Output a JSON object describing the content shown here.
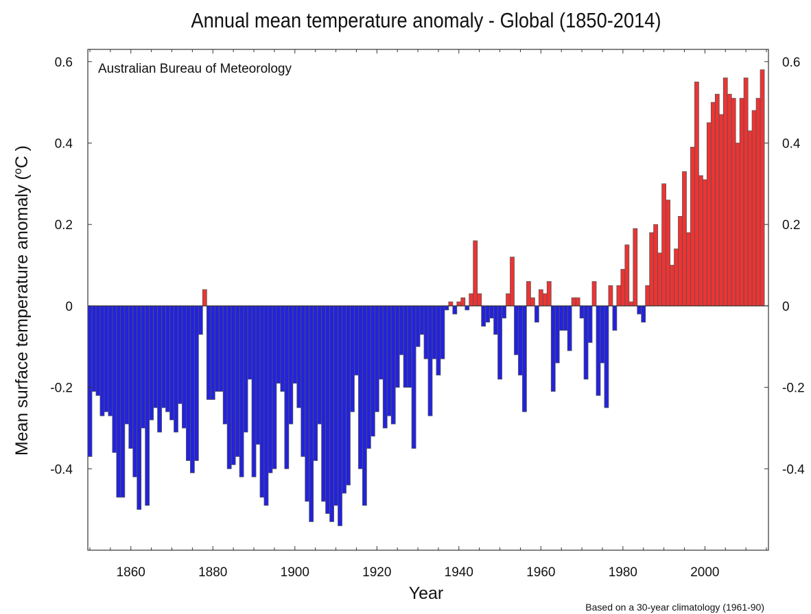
{
  "chart_data": {
    "type": "bar",
    "title": "Annual mean temperature anomaly - Global (1850-2014)",
    "source_label": "Australian Bureau of Meteorology",
    "xlabel": "Year",
    "ylabel_text": "Mean surface temperature anomaly (",
    "ylabel_degree": "o",
    "ylabel_unit": "C )",
    "footnote": "Based on a 30-year climatology (1961-90)",
    "xlim": [
      1849.5,
      2015.5
    ],
    "ylim": [
      -0.6,
      0.63
    ],
    "x_ticks": [
      1860,
      1880,
      1900,
      1920,
      1940,
      1960,
      1980,
      2000
    ],
    "x_tick_labels": [
      "1860",
      "1880",
      "1900",
      "1920",
      "1940",
      "1960",
      "1980",
      "2000"
    ],
    "y_ticks": [
      0.6,
      0.4,
      0.2,
      0,
      -0.2,
      -0.4
    ],
    "y_tick_labels": [
      "0.6",
      "0.4",
      "0.2",
      "0",
      "-0.2",
      "-0.4"
    ],
    "grid": false,
    "colors": {
      "positive": "#ee3333",
      "negative": "#2222dd",
      "bar_edge": "#555555",
      "axis": "#333333"
    },
    "start_year": 1850,
    "years": [
      1850,
      1851,
      1852,
      1853,
      1854,
      1855,
      1856,
      1857,
      1858,
      1859,
      1860,
      1861,
      1862,
      1863,
      1864,
      1865,
      1866,
      1867,
      1868,
      1869,
      1870,
      1871,
      1872,
      1873,
      1874,
      1875,
      1876,
      1877,
      1878,
      1879,
      1880,
      1881,
      1882,
      1883,
      1884,
      1885,
      1886,
      1887,
      1888,
      1889,
      1890,
      1891,
      1892,
      1893,
      1894,
      1895,
      1896,
      1897,
      1898,
      1899,
      1900,
      1901,
      1902,
      1903,
      1904,
      1905,
      1906,
      1907,
      1908,
      1909,
      1910,
      1911,
      1912,
      1913,
      1914,
      1915,
      1916,
      1917,
      1918,
      1919,
      1920,
      1921,
      1922,
      1923,
      1924,
      1925,
      1926,
      1927,
      1928,
      1929,
      1930,
      1931,
      1932,
      1933,
      1934,
      1935,
      1936,
      1937,
      1938,
      1939,
      1940,
      1941,
      1942,
      1943,
      1944,
      1945,
      1946,
      1947,
      1948,
      1949,
      1950,
      1951,
      1952,
      1953,
      1954,
      1955,
      1956,
      1957,
      1958,
      1959,
      1960,
      1961,
      1962,
      1963,
      1964,
      1965,
      1966,
      1967,
      1968,
      1969,
      1970,
      1971,
      1972,
      1973,
      1974,
      1975,
      1976,
      1977,
      1978,
      1979,
      1980,
      1981,
      1982,
      1983,
      1984,
      1985,
      1986,
      1987,
      1988,
      1989,
      1990,
      1991,
      1992,
      1993,
      1994,
      1995,
      1996,
      1997,
      1998,
      1999,
      2000,
      2001,
      2002,
      2003,
      2004,
      2005,
      2006,
      2007,
      2008,
      2009,
      2010,
      2011,
      2012,
      2013,
      2014
    ],
    "values": [
      -0.37,
      -0.21,
      -0.22,
      -0.27,
      -0.26,
      -0.27,
      -0.36,
      -0.47,
      -0.47,
      -0.29,
      -0.35,
      -0.42,
      -0.5,
      -0.3,
      -0.49,
      -0.28,
      -0.25,
      -0.31,
      -0.25,
      -0.26,
      -0.28,
      -0.31,
      -0.24,
      -0.3,
      -0.38,
      -0.41,
      -0.38,
      -0.07,
      0.04,
      -0.23,
      -0.23,
      -0.21,
      -0.21,
      -0.29,
      -0.4,
      -0.39,
      -0.37,
      -0.42,
      -0.31,
      -0.18,
      -0.42,
      -0.34,
      -0.47,
      -0.49,
      -0.41,
      -0.4,
      -0.19,
      -0.21,
      -0.4,
      -0.29,
      -0.19,
      -0.25,
      -0.37,
      -0.48,
      -0.53,
      -0.38,
      -0.29,
      -0.48,
      -0.51,
      -0.53,
      -0.49,
      -0.54,
      -0.46,
      -0.44,
      -0.26,
      -0.17,
      -0.4,
      -0.49,
      -0.35,
      -0.32,
      -0.26,
      -0.18,
      -0.3,
      -0.27,
      -0.29,
      -0.2,
      -0.12,
      -0.2,
      -0.2,
      -0.35,
      -0.1,
      -0.07,
      -0.13,
      -0.27,
      -0.13,
      -0.17,
      -0.13,
      -0.01,
      0.01,
      -0.02,
      0.01,
      0.02,
      -0.01,
      0.03,
      0.16,
      0.03,
      -0.05,
      -0.04,
      -0.03,
      -0.07,
      -0.18,
      -0.03,
      0.03,
      0.12,
      -0.12,
      -0.17,
      -0.26,
      0.06,
      0.02,
      -0.04,
      0.04,
      0.03,
      0.06,
      -0.21,
      -0.14,
      -0.06,
      -0.06,
      -0.11,
      0.02,
      0.02,
      -0.03,
      -0.18,
      -0.09,
      0.06,
      -0.22,
      -0.14,
      -0.25,
      0.05,
      -0.06,
      0.05,
      0.09,
      0.15,
      0.01,
      0.19,
      -0.02,
      -0.04,
      0.05,
      0.18,
      0.2,
      0.13,
      0.3,
      0.26,
      0.1,
      0.14,
      0.22,
      0.33,
      0.18,
      0.39,
      0.55,
      0.32,
      0.31,
      0.45,
      0.5,
      0.52,
      0.47,
      0.56,
      0.52,
      0.51,
      0.4,
      0.51,
      0.56,
      0.43,
      0.48,
      0.51,
      0.58
    ]
  }
}
